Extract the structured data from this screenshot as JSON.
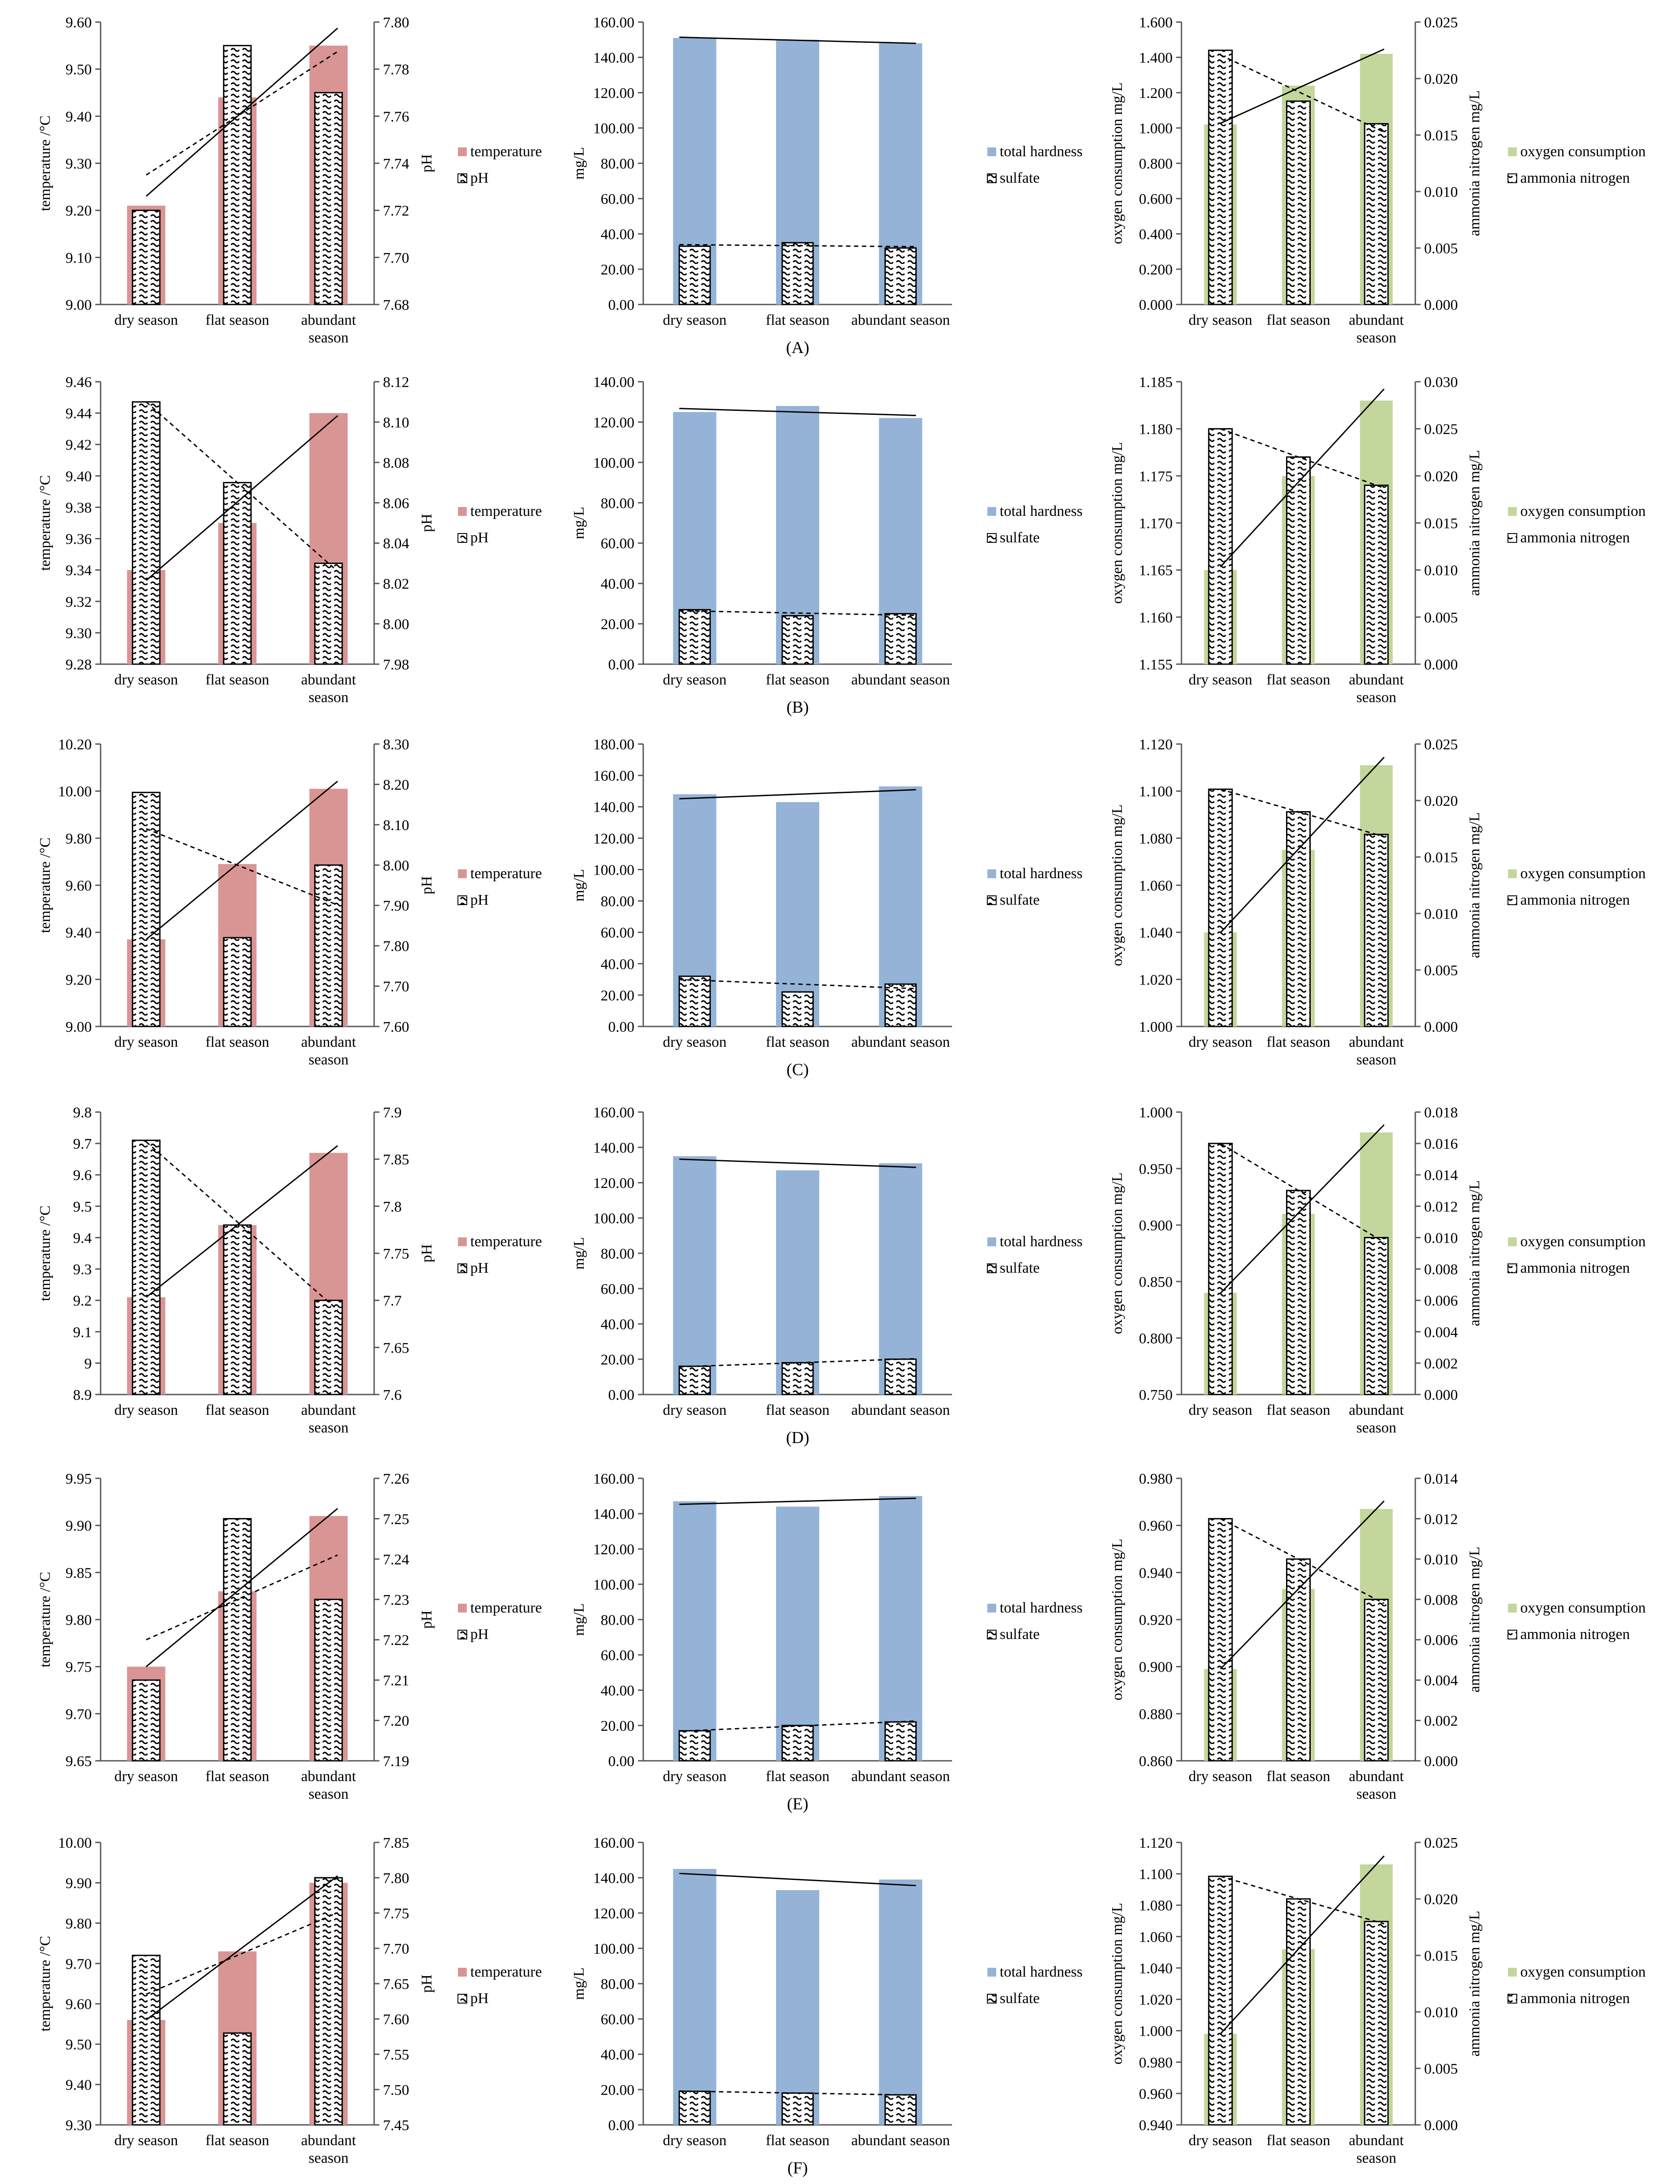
{
  "categories": [
    "dry season",
    "flat season",
    "abundant season"
  ],
  "colors": {
    "temperature": "#d99594",
    "hardness": "#95b3d7",
    "oxygen": "#c3d69b"
  },
  "labels": {
    "temp_axis": "temperature /°C",
    "ph_axis": "pH",
    "mgl_axis": "mg/L",
    "oc_axis": "oxygen consumption mg/L",
    "an_axis": "ammonia nitrogen mg/L",
    "leg_temperature": "temperature",
    "leg_ph": "pH",
    "leg_hardness": "total hardness",
    "leg_sulfate": "sulfate",
    "leg_oxygen": "oxygen consumption",
    "leg_ammonia": "ammonia nitrogen"
  },
  "chart_data": [
    {
      "panel": "(A)",
      "temp_ph": {
        "type": "bar",
        "temperature": [
          9.21,
          9.44,
          9.55
        ],
        "ph": [
          7.72,
          7.79,
          7.77
        ],
        "y_left": [
          9.0,
          9.6
        ],
        "y_left_ticks": [
          "9.00",
          "9.10",
          "9.20",
          "9.30",
          "9.40",
          "9.50",
          "9.60"
        ],
        "y_right": [
          7.68,
          7.8
        ],
        "y_right_ticks": [
          "7.68",
          "7.70",
          "7.72",
          "7.74",
          "7.76",
          "7.78",
          "7.80"
        ]
      },
      "hardness_sulfate": {
        "type": "bar",
        "total_hardness": [
          151,
          150,
          148
        ],
        "sulfate": [
          33,
          35,
          32
        ],
        "y": [
          0,
          160
        ],
        "y_ticks": [
          "0.00",
          "20.00",
          "40.00",
          "60.00",
          "80.00",
          "100.00",
          "120.00",
          "140.00",
          "160.00"
        ]
      },
      "oxygen_ammonia": {
        "type": "bar",
        "oxygen_consumption": [
          1.02,
          1.24,
          1.42
        ],
        "ammonia_nitrogen": [
          0.0225,
          0.018,
          0.016
        ],
        "y_left": [
          0,
          1.6
        ],
        "y_left_ticks": [
          "0.000",
          "0.200",
          "0.400",
          "0.600",
          "0.800",
          "1.000",
          "1.200",
          "1.400",
          "1.600"
        ],
        "y_right": [
          0,
          0.025
        ],
        "y_right_ticks": [
          "0.000",
          "0.005",
          "0.010",
          "0.015",
          "0.020",
          "0.025"
        ]
      }
    },
    {
      "panel": "(B)",
      "temp_ph": {
        "type": "bar",
        "temperature": [
          9.34,
          9.37,
          9.44
        ],
        "ph": [
          8.11,
          8.07,
          8.03
        ],
        "y_left": [
          9.28,
          9.46
        ],
        "y_left_ticks": [
          "9.28",
          "9.30",
          "9.32",
          "9.34",
          "9.36",
          "9.38",
          "9.40",
          "9.42",
          "9.44",
          "9.46"
        ],
        "y_right": [
          7.98,
          8.12
        ],
        "y_right_ticks": [
          "7.98",
          "8.00",
          "8.02",
          "8.04",
          "8.06",
          "8.08",
          "8.10",
          "8.12"
        ]
      },
      "hardness_sulfate": {
        "type": "bar",
        "total_hardness": [
          125,
          128,
          122
        ],
        "sulfate": [
          27,
          24,
          25
        ],
        "y": [
          0,
          140
        ],
        "y_ticks": [
          "0.00",
          "20.00",
          "40.00",
          "60.00",
          "80.00",
          "100.00",
          "120.00",
          "140.00"
        ]
      },
      "oxygen_ammonia": {
        "type": "bar",
        "oxygen_consumption": [
          1.165,
          1.175,
          1.183
        ],
        "ammonia_nitrogen": [
          0.025,
          0.022,
          0.019
        ],
        "y_left": [
          1.155,
          1.185
        ],
        "y_left_ticks": [
          "1.155",
          "1.160",
          "1.165",
          "1.170",
          "1.175",
          "1.180",
          "1.185"
        ],
        "y_right": [
          0,
          0.03
        ],
        "y_right_ticks": [
          "0.000",
          "0.005",
          "0.010",
          "0.015",
          "0.020",
          "0.025",
          "0.030"
        ]
      }
    },
    {
      "panel": "(C)",
      "temp_ph": {
        "type": "bar",
        "temperature": [
          9.37,
          9.69,
          10.01
        ],
        "ph": [
          8.18,
          7.82,
          8.0
        ],
        "y_left": [
          9.0,
          10.2
        ],
        "y_left_ticks": [
          "9.00",
          "9.20",
          "9.40",
          "9.60",
          "9.80",
          "10.00",
          "10.20"
        ],
        "y_right": [
          7.6,
          8.3
        ],
        "y_right_ticks": [
          "7.60",
          "7.70",
          "7.80",
          "7.90",
          "8.00",
          "8.10",
          "8.20",
          "8.30"
        ]
      },
      "hardness_sulfate": {
        "type": "bar",
        "total_hardness": [
          148,
          143,
          153
        ],
        "sulfate": [
          32,
          22,
          27
        ],
        "y": [
          0,
          180
        ],
        "y_ticks": [
          "0.00",
          "20.00",
          "40.00",
          "60.00",
          "80.00",
          "100.00",
          "120.00",
          "140.00",
          "160.00",
          "180.00"
        ]
      },
      "oxygen_ammonia": {
        "type": "bar",
        "oxygen_consumption": [
          1.04,
          1.075,
          1.111
        ],
        "ammonia_nitrogen": [
          0.021,
          0.019,
          0.017
        ],
        "y_left": [
          1.0,
          1.12
        ],
        "y_left_ticks": [
          "1.000",
          "1.020",
          "1.040",
          "1.060",
          "1.080",
          "1.100",
          "1.120"
        ],
        "y_right": [
          0,
          0.025
        ],
        "y_right_ticks": [
          "0.000",
          "0.005",
          "0.010",
          "0.015",
          "0.020",
          "0.025"
        ]
      }
    },
    {
      "panel": "(D)",
      "temp_ph": {
        "type": "bar",
        "temperature": [
          9.21,
          9.44,
          9.67
        ],
        "ph": [
          7.87,
          7.78,
          7.7
        ],
        "y_left": [
          8.9,
          9.8
        ],
        "y_left_ticks": [
          "8.9",
          "9",
          "9.1",
          "9.2",
          "9.3",
          "9.4",
          "9.5",
          "9.6",
          "9.7",
          "9.8"
        ],
        "y_right": [
          7.6,
          7.9
        ],
        "y_right_ticks": [
          "7.6",
          "7.65",
          "7.7",
          "7.75",
          "7.8",
          "7.85",
          "7.9"
        ]
      },
      "hardness_sulfate": {
        "type": "bar",
        "total_hardness": [
          135,
          127,
          131
        ],
        "sulfate": [
          16,
          18,
          20
        ],
        "y": [
          0,
          160
        ],
        "y_ticks": [
          "0.00",
          "20.00",
          "40.00",
          "60.00",
          "80.00",
          "100.00",
          "120.00",
          "140.00",
          "160.00"
        ]
      },
      "oxygen_ammonia": {
        "type": "bar",
        "oxygen_consumption": [
          0.84,
          0.91,
          0.982
        ],
        "ammonia_nitrogen": [
          0.016,
          0.013,
          0.01
        ],
        "y_left": [
          0.75,
          1.0
        ],
        "y_left_ticks": [
          "0.750",
          "0.800",
          "0.850",
          "0.900",
          "0.950",
          "1.000"
        ],
        "y_right": [
          0,
          0.018
        ],
        "y_right_ticks": [
          "0.000",
          "0.002",
          "0.004",
          "0.006",
          "0.008",
          "0.010",
          "0.012",
          "0.014",
          "0.016",
          "0.018"
        ]
      }
    },
    {
      "panel": "(E)",
      "temp_ph": {
        "type": "bar",
        "temperature": [
          9.75,
          9.83,
          9.91
        ],
        "ph": [
          7.21,
          7.25,
          7.23
        ],
        "y_left": [
          9.65,
          9.95
        ],
        "y_left_ticks": [
          "9.65",
          "9.70",
          "9.75",
          "9.80",
          "9.85",
          "9.90",
          "9.95"
        ],
        "y_right": [
          7.19,
          7.26
        ],
        "y_right_ticks": [
          "7.19",
          "7.20",
          "7.21",
          "7.22",
          "7.23",
          "7.24",
          "7.25",
          "7.26"
        ]
      },
      "hardness_sulfate": {
        "type": "bar",
        "total_hardness": [
          147,
          144,
          150
        ],
        "sulfate": [
          17,
          20,
          22
        ],
        "y": [
          0,
          160
        ],
        "y_ticks": [
          "0.00",
          "20.00",
          "40.00",
          "60.00",
          "80.00",
          "100.00",
          "120.00",
          "140.00",
          "160.00"
        ]
      },
      "oxygen_ammonia": {
        "type": "bar",
        "oxygen_consumption": [
          0.899,
          0.933,
          0.967
        ],
        "ammonia_nitrogen": [
          0.012,
          0.01,
          0.008
        ],
        "y_left": [
          0.86,
          0.98
        ],
        "y_left_ticks": [
          "0.860",
          "0.880",
          "0.900",
          "0.920",
          "0.940",
          "0.960",
          "0.980"
        ],
        "y_right": [
          0,
          0.014
        ],
        "y_right_ticks": [
          "0.000",
          "0.002",
          "0.004",
          "0.006",
          "0.008",
          "0.010",
          "0.012",
          "0.014"
        ]
      }
    },
    {
      "panel": "(F)",
      "temp_ph": {
        "type": "bar",
        "temperature": [
          9.56,
          9.73,
          9.9
        ],
        "ph": [
          7.69,
          7.58,
          7.8
        ],
        "y_left": [
          9.3,
          10.0
        ],
        "y_left_ticks": [
          "9.30",
          "9.40",
          "9.50",
          "9.60",
          "9.70",
          "9.80",
          "9.90",
          "10.00"
        ],
        "y_right": [
          7.45,
          7.85
        ],
        "y_right_ticks": [
          "7.45",
          "7.50",
          "7.55",
          "7.60",
          "7.65",
          "7.70",
          "7.75",
          "7.80",
          "7.85"
        ]
      },
      "hardness_sulfate": {
        "type": "bar",
        "total_hardness": [
          145,
          133,
          139
        ],
        "sulfate": [
          19,
          18,
          17
        ],
        "y": [
          0,
          160
        ],
        "y_ticks": [
          "0.00",
          "20.00",
          "40.00",
          "60.00",
          "80.00",
          "100.00",
          "120.00",
          "140.00",
          "160.00"
        ]
      },
      "oxygen_ammonia": {
        "type": "bar",
        "oxygen_consumption": [
          0.998,
          1.052,
          1.106
        ],
        "ammonia_nitrogen": [
          0.022,
          0.02,
          0.018
        ],
        "y_left": [
          0.94,
          1.12
        ],
        "y_left_ticks": [
          "0.940",
          "0.960",
          "0.980",
          "1.000",
          "1.020",
          "1.040",
          "1.060",
          "1.080",
          "1.100",
          "1.120"
        ],
        "y_right": [
          0,
          0.025
        ],
        "y_right_ticks": [
          "0.000",
          "0.005",
          "0.010",
          "0.015",
          "0.020",
          "0.025"
        ]
      }
    }
  ]
}
